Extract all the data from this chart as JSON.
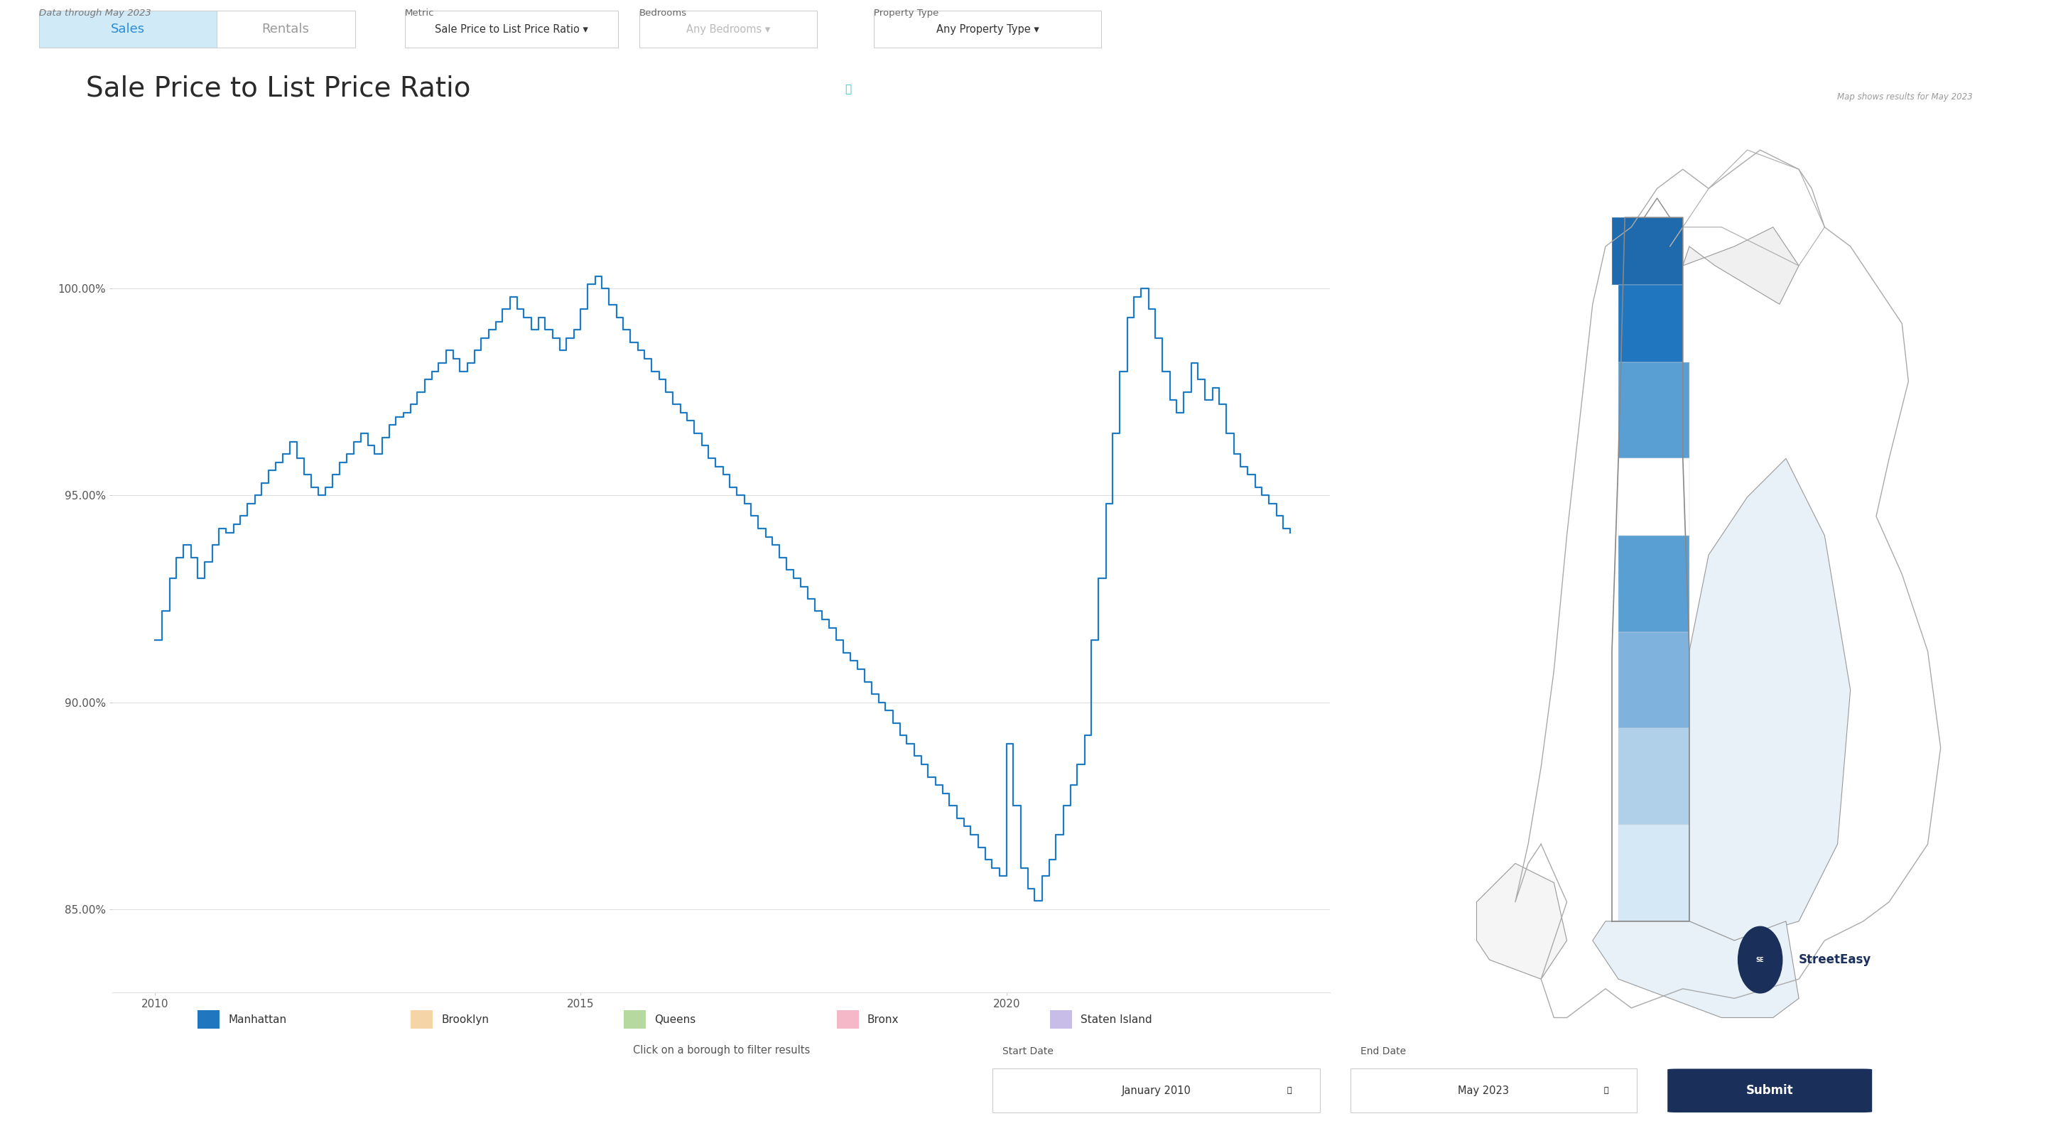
{
  "title": "Sale Price to List Price Ratio",
  "title_underline_color": "#2ec4c4",
  "subtitle": "Data through May 2023",
  "bg_color": "#ffffff",
  "header_bg_color": "#f2f2f2",
  "chart_line_color": "#1e7bc4",
  "grid_color": "#e0e0e0",
  "yticks": [
    85.0,
    90.0,
    95.0,
    100.0
  ],
  "ytick_labels": [
    "85.00%",
    "90.00%",
    "95.00%",
    "100.00%"
  ],
  "xtick_positions": [
    2010,
    2015,
    2020
  ],
  "xtick_labels": [
    "2010",
    "2015",
    "2020"
  ],
  "ylim": [
    83.0,
    102.5
  ],
  "xlim": [
    2009.5,
    2023.8
  ],
  "legend_items": [
    {
      "label": "Manhattan",
      "color": "#2176c0"
    },
    {
      "label": "Brooklyn",
      "color": "#f5d5a8"
    },
    {
      "label": "Queens",
      "color": "#b6d9a0"
    },
    {
      "label": "Bronx",
      "color": "#f4b8c8"
    },
    {
      "label": "Staten Island",
      "color": "#c8bce8"
    }
  ],
  "legend_note": "Click on a borough to filter results",
  "sales_tab_bg": "#d0eaf8",
  "sales_tab_text_color": "#2b8dd6",
  "rentals_tab_text_color": "#999999",
  "tab_border_color": "#cccccc",
  "metric_label": "Metric",
  "metric_value": "Sale Price to List Price Ratio ▾",
  "bedrooms_label": "Bedrooms",
  "bedrooms_value": "Any Bedrooms ▾",
  "property_label": "Property Type",
  "property_value": "Any Property Type ▾",
  "start_date_label": "Start Date",
  "start_date_value": "January 2010",
  "end_date_label": "End Date",
  "end_date_value": "May 2023",
  "submit_label": "Submit",
  "map_note": "Map shows results for May 2023",
  "streeteasy_text": "StreetEasy",
  "x_values": [
    2010.0,
    2010.08,
    2010.17,
    2010.25,
    2010.33,
    2010.42,
    2010.5,
    2010.58,
    2010.67,
    2010.75,
    2010.83,
    2010.92,
    2011.0,
    2011.08,
    2011.17,
    2011.25,
    2011.33,
    2011.42,
    2011.5,
    2011.58,
    2011.67,
    2011.75,
    2011.83,
    2011.92,
    2012.0,
    2012.08,
    2012.17,
    2012.25,
    2012.33,
    2012.42,
    2012.5,
    2012.58,
    2012.67,
    2012.75,
    2012.83,
    2012.92,
    2013.0,
    2013.08,
    2013.17,
    2013.25,
    2013.33,
    2013.42,
    2013.5,
    2013.58,
    2013.67,
    2013.75,
    2013.83,
    2013.92,
    2014.0,
    2014.08,
    2014.17,
    2014.25,
    2014.33,
    2014.42,
    2014.5,
    2014.58,
    2014.67,
    2014.75,
    2014.83,
    2014.92,
    2015.0,
    2015.08,
    2015.17,
    2015.25,
    2015.33,
    2015.42,
    2015.5,
    2015.58,
    2015.67,
    2015.75,
    2015.83,
    2015.92,
    2016.0,
    2016.08,
    2016.17,
    2016.25,
    2016.33,
    2016.42,
    2016.5,
    2016.58,
    2016.67,
    2016.75,
    2016.83,
    2016.92,
    2017.0,
    2017.08,
    2017.17,
    2017.25,
    2017.33,
    2017.42,
    2017.5,
    2017.58,
    2017.67,
    2017.75,
    2017.83,
    2017.92,
    2018.0,
    2018.08,
    2018.17,
    2018.25,
    2018.33,
    2018.42,
    2018.5,
    2018.58,
    2018.67,
    2018.75,
    2018.83,
    2018.92,
    2019.0,
    2019.08,
    2019.17,
    2019.25,
    2019.33,
    2019.42,
    2019.5,
    2019.58,
    2019.67,
    2019.75,
    2019.83,
    2019.92,
    2020.0,
    2020.08,
    2020.17,
    2020.25,
    2020.33,
    2020.42,
    2020.5,
    2020.58,
    2020.67,
    2020.75,
    2020.83,
    2020.92,
    2021.0,
    2021.08,
    2021.17,
    2021.25,
    2021.33,
    2021.42,
    2021.5,
    2021.58,
    2021.67,
    2021.75,
    2021.83,
    2021.92,
    2022.0,
    2022.08,
    2022.17,
    2022.25,
    2022.33,
    2022.42,
    2022.5,
    2022.58,
    2022.67,
    2022.75,
    2022.83,
    2022.92,
    2023.0,
    2023.08,
    2023.17,
    2023.25,
    2023.33
  ],
  "y_values": [
    91.5,
    92.2,
    93.0,
    93.5,
    93.8,
    93.5,
    93.0,
    93.4,
    93.8,
    94.2,
    94.1,
    94.3,
    94.5,
    94.8,
    95.0,
    95.3,
    95.6,
    95.8,
    96.0,
    96.3,
    95.9,
    95.5,
    95.2,
    95.0,
    95.2,
    95.5,
    95.8,
    96.0,
    96.3,
    96.5,
    96.2,
    96.0,
    96.4,
    96.7,
    96.9,
    97.0,
    97.2,
    97.5,
    97.8,
    98.0,
    98.2,
    98.5,
    98.3,
    98.0,
    98.2,
    98.5,
    98.8,
    99.0,
    99.2,
    99.5,
    99.8,
    99.5,
    99.3,
    99.0,
    99.3,
    99.0,
    98.8,
    98.5,
    98.8,
    99.0,
    99.5,
    100.1,
    100.3,
    100.0,
    99.6,
    99.3,
    99.0,
    98.7,
    98.5,
    98.3,
    98.0,
    97.8,
    97.5,
    97.2,
    97.0,
    96.8,
    96.5,
    96.2,
    95.9,
    95.7,
    95.5,
    95.2,
    95.0,
    94.8,
    94.5,
    94.2,
    94.0,
    93.8,
    93.5,
    93.2,
    93.0,
    92.8,
    92.5,
    92.2,
    92.0,
    91.8,
    91.5,
    91.2,
    91.0,
    90.8,
    90.5,
    90.2,
    90.0,
    89.8,
    89.5,
    89.2,
    89.0,
    88.7,
    88.5,
    88.2,
    88.0,
    87.8,
    87.5,
    87.2,
    87.0,
    86.8,
    86.5,
    86.2,
    86.0,
    85.8,
    89.0,
    87.5,
    86.0,
    85.5,
    85.2,
    85.8,
    86.2,
    86.8,
    87.5,
    88.0,
    88.5,
    89.2,
    91.5,
    93.0,
    94.8,
    96.5,
    98.0,
    99.3,
    99.8,
    100.0,
    99.5,
    98.8,
    98.0,
    97.3,
    97.0,
    97.5,
    98.2,
    97.8,
    97.3,
    97.6,
    97.2,
    96.5,
    96.0,
    95.7,
    95.5,
    95.2,
    95.0,
    94.8,
    94.5,
    94.2,
    94.1
  ],
  "map_outline_color": "#888888",
  "map_fill_white": "#ffffff",
  "map_manhattan_segments": [
    {
      "color": "#2176c0",
      "alpha": 0.85
    },
    {
      "color": "#7ab0d8",
      "alpha": 0.6
    },
    {
      "color": "#b8d4eb",
      "alpha": 0.5
    },
    {
      "color": "#dce9f5",
      "alpha": 0.4
    },
    {
      "color": "#ffffff",
      "alpha": 1.0
    }
  ]
}
